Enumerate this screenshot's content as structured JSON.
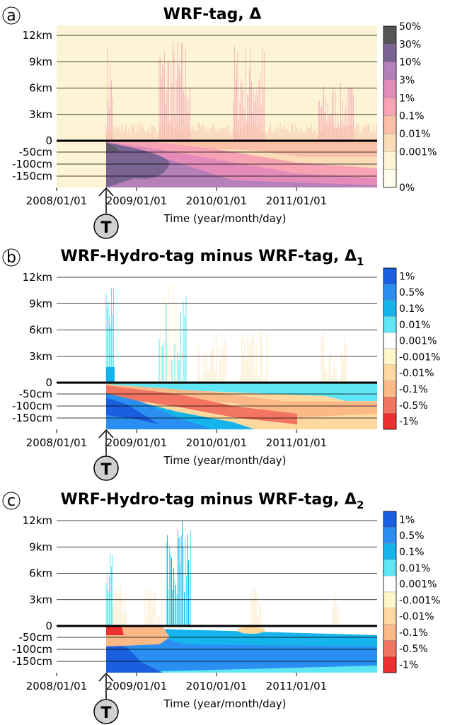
{
  "chart_data": [
    {
      "type": "heatmap",
      "panel_label": "a",
      "title": "WRF-tag, Δ",
      "title_subscript": "",
      "xlabel": "Time (year/month/day)",
      "x_ticks": [
        "2008/01/01",
        "2009/01/01",
        "2010/01/01",
        "2011/01/01"
      ],
      "y_ticks_atmosphere": [
        "12km",
        "9km",
        "6km",
        "3km",
        "0"
      ],
      "y_ticks_soil": [
        "-50cm",
        "-100cm",
        "-150cm"
      ],
      "colorbar": {
        "labels": [
          "50%",
          "30%",
          "10%",
          "3%",
          "1%",
          "0.1%",
          "0.01%",
          "0.001%",
          "0%"
        ],
        "colors": [
          "#555555",
          "#7a6494",
          "#b57fba",
          "#e38cba",
          "#f8a3b4",
          "#f9bfa7",
          "#fbdcb8",
          "#fcf4d5",
          "#fefcec"
        ]
      },
      "marker": "T",
      "background": "#fcf4d5"
    },
    {
      "type": "heatmap",
      "panel_label": "b",
      "title": "WRF-Hydro-tag minus WRF-tag, Δ",
      "title_subscript": "1",
      "xlabel": "Time (year/month/day)",
      "x_ticks": [
        "2008/01/01",
        "2009/01/01",
        "2010/01/01",
        "2011/01/01"
      ],
      "y_ticks_atmosphere": [
        "12km",
        "9km",
        "6km",
        "3km",
        "0"
      ],
      "y_ticks_soil": [
        "-50cm",
        "-100cm",
        "-150cm"
      ],
      "colorbar": {
        "labels": [
          "1%",
          "0.5%",
          "0.1%",
          "0.01%",
          "0.001%",
          "-0.001%",
          "-0.01%",
          "-0.1%",
          "-0.5%",
          "-1%"
        ],
        "colors": [
          "#1a5fe0",
          "#2a8ff0",
          "#16b4ec",
          "#5ee6f4",
          "#ffffff",
          "#fff6cc",
          "#fdd9a0",
          "#fbb988",
          "#f27562",
          "#ec2f2f"
        ]
      },
      "marker": "T",
      "background": "#ffffff"
    },
    {
      "type": "heatmap",
      "panel_label": "c",
      "title": "WRF-Hydro-tag minus WRF-tag, Δ",
      "title_subscript": "2",
      "xlabel": "Time (year/month/day)",
      "x_ticks": [
        "2008/01/01",
        "2009/01/01",
        "2010/01/01",
        "2011/01/01"
      ],
      "y_ticks_atmosphere": [
        "12km",
        "9km",
        "6km",
        "3km",
        "0"
      ],
      "y_ticks_soil": [
        "-50cm",
        "-100cm",
        "-150cm"
      ],
      "colorbar": {
        "labels": [
          "1%",
          "0.5%",
          "0.1%",
          "0.01%",
          "0.001%",
          "-0.001%",
          "-0.01%",
          "-0.1%",
          "-0.5%",
          "-1%"
        ],
        "colors": [
          "#1a5fe0",
          "#2a8ff0",
          "#16b4ec",
          "#5ee6f4",
          "#ffffff",
          "#fff6cc",
          "#fdd9a0",
          "#fbb988",
          "#f27562",
          "#ec2f2f"
        ]
      },
      "marker": "T",
      "background": "#ffffff"
    }
  ]
}
